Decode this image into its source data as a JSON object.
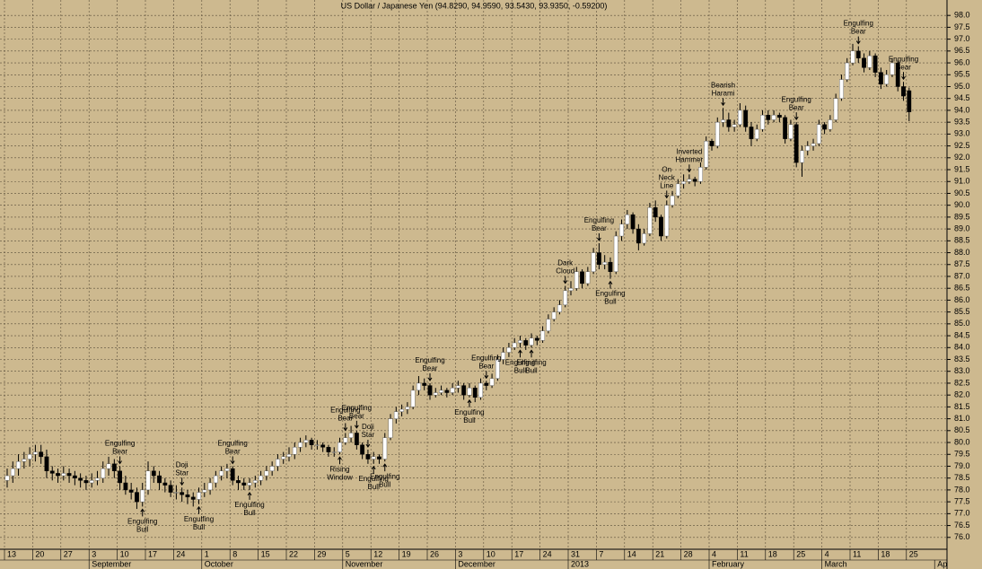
{
  "chart_data": {
    "type": "candlestick",
    "title": "US Dollar / Japanese Yen (94.8290, 94.9590, 93.5430, 93.9350, -0.59200)",
    "ohlc": [
      [
        78.4,
        78.9,
        78.1,
        78.6
      ],
      [
        78.6,
        79.2,
        78.3,
        78.9
      ],
      [
        78.9,
        79.5,
        78.6,
        79.2
      ],
      [
        79.2,
        79.6,
        78.9,
        79.3
      ],
      [
        79.3,
        79.8,
        79.0,
        79.5
      ],
      [
        79.5,
        79.9,
        79.2,
        79.6
      ],
      [
        79.6,
        79.9,
        79.1,
        79.4
      ],
      [
        79.4,
        79.7,
        78.5,
        78.8
      ],
      [
        78.8,
        79.0,
        78.4,
        78.7
      ],
      [
        78.7,
        78.9,
        78.3,
        78.6
      ],
      [
        78.6,
        79.0,
        78.4,
        78.7
      ],
      [
        78.7,
        78.9,
        78.3,
        78.6
      ],
      [
        78.6,
        78.8,
        78.2,
        78.5
      ],
      [
        78.5,
        78.7,
        78.1,
        78.4
      ],
      [
        78.4,
        78.6,
        78.0,
        78.3
      ],
      [
        78.3,
        78.7,
        78.1,
        78.4
      ],
      [
        78.4,
        78.8,
        78.2,
        78.5
      ],
      [
        78.5,
        79.2,
        78.3,
        78.9
      ],
      [
        78.9,
        79.4,
        78.6,
        79.1
      ],
      [
        79.1,
        79.3,
        78.5,
        78.8
      ],
      [
        78.8,
        79.0,
        78.0,
        78.3
      ],
      [
        78.3,
        78.6,
        77.8,
        78.0
      ],
      [
        78.0,
        78.3,
        77.6,
        77.9
      ],
      [
        77.9,
        78.1,
        77.2,
        77.5
      ],
      [
        77.5,
        78.3,
        77.3,
        78.0
      ],
      [
        78.0,
        79.2,
        77.8,
        78.8
      ],
      [
        78.8,
        79.0,
        78.3,
        78.6
      ],
      [
        78.6,
        78.8,
        78.0,
        78.3
      ],
      [
        78.3,
        78.5,
        77.9,
        78.2
      ],
      [
        78.2,
        78.4,
        77.7,
        77.9
      ],
      [
        77.9,
        78.2,
        77.6,
        77.9
      ],
      [
        77.9,
        78.1,
        77.5,
        77.8
      ],
      [
        77.8,
        78.0,
        77.4,
        77.7
      ],
      [
        77.7,
        77.9,
        77.3,
        77.6
      ],
      [
        77.6,
        78.1,
        77.4,
        77.9
      ],
      [
        77.9,
        78.3,
        77.7,
        78.0
      ],
      [
        78.0,
        78.5,
        77.8,
        78.3
      ],
      [
        78.3,
        78.8,
        78.1,
        78.6
      ],
      [
        78.6,
        79.0,
        78.4,
        78.8
      ],
      [
        78.8,
        79.1,
        78.5,
        78.9
      ],
      [
        78.9,
        79.0,
        78.2,
        78.4
      ],
      [
        78.4,
        78.6,
        78.0,
        78.3
      ],
      [
        78.3,
        78.5,
        78.0,
        78.2
      ],
      [
        78.2,
        78.5,
        78.0,
        78.3
      ],
      [
        78.3,
        78.6,
        78.1,
        78.4
      ],
      [
        78.4,
        78.8,
        78.2,
        78.6
      ],
      [
        78.6,
        79.0,
        78.4,
        78.8
      ],
      [
        78.8,
        79.2,
        78.6,
        79.0
      ],
      [
        79.0,
        79.5,
        78.8,
        79.3
      ],
      [
        79.3,
        79.6,
        79.1,
        79.4
      ],
      [
        79.4,
        79.8,
        79.2,
        79.5
      ],
      [
        79.5,
        80.0,
        79.3,
        79.8
      ],
      [
        79.8,
        80.2,
        79.6,
        80.0
      ],
      [
        80.0,
        80.3,
        79.8,
        80.1
      ],
      [
        80.1,
        80.2,
        79.7,
        79.9
      ],
      [
        79.9,
        80.1,
        79.7,
        79.9
      ],
      [
        79.9,
        80.0,
        79.6,
        79.8
      ],
      [
        79.8,
        79.9,
        79.4,
        79.6
      ],
      [
        79.6,
        79.8,
        79.4,
        79.6
      ],
      [
        79.6,
        80.2,
        79.5,
        80.0
      ],
      [
        80.0,
        80.4,
        79.9,
        80.2
      ],
      [
        80.2,
        80.7,
        80.0,
        80.4
      ],
      [
        80.4,
        80.5,
        79.7,
        79.9
      ],
      [
        79.9,
        80.0,
        79.3,
        79.5
      ],
      [
        79.5,
        79.7,
        79.1,
        79.3
      ],
      [
        79.3,
        79.6,
        79.1,
        79.4
      ],
      [
        79.4,
        79.5,
        79.1,
        79.3
      ],
      [
        79.3,
        80.4,
        79.2,
        80.2
      ],
      [
        80.2,
        81.2,
        80.1,
        81.0
      ],
      [
        81.0,
        81.5,
        80.8,
        81.3
      ],
      [
        81.3,
        81.6,
        81.1,
        81.4
      ],
      [
        81.4,
        81.7,
        81.2,
        81.5
      ],
      [
        81.5,
        82.4,
        81.4,
        82.2
      ],
      [
        82.2,
        82.8,
        82.0,
        82.5
      ],
      [
        82.5,
        82.7,
        82.2,
        82.4
      ],
      [
        82.4,
        82.5,
        81.8,
        82.0
      ],
      [
        82.0,
        82.3,
        81.9,
        82.1
      ],
      [
        82.1,
        82.4,
        82.0,
        82.2
      ],
      [
        82.2,
        82.3,
        81.9,
        82.1
      ],
      [
        82.1,
        82.5,
        82.0,
        82.3
      ],
      [
        82.3,
        82.6,
        82.1,
        82.4
      ],
      [
        82.4,
        82.5,
        81.8,
        82.0
      ],
      [
        82.0,
        82.5,
        81.9,
        82.3
      ],
      [
        82.3,
        82.4,
        81.7,
        81.9
      ],
      [
        81.9,
        82.7,
        81.8,
        82.5
      ],
      [
        82.5,
        82.6,
        82.2,
        82.4
      ],
      [
        82.4,
        82.9,
        82.3,
        82.7
      ],
      [
        82.7,
        83.7,
        82.6,
        83.5
      ],
      [
        83.5,
        84.0,
        83.3,
        83.8
      ],
      [
        83.8,
        84.2,
        83.6,
        84.0
      ],
      [
        84.0,
        84.4,
        83.9,
        84.2
      ],
      [
        84.2,
        84.5,
        84.0,
        84.3
      ],
      [
        84.3,
        84.4,
        83.9,
        84.1
      ],
      [
        84.1,
        84.6,
        84.0,
        84.4
      ],
      [
        84.4,
        84.5,
        84.1,
        84.3
      ],
      [
        84.3,
        84.9,
        84.2,
        84.7
      ],
      [
        84.7,
        85.4,
        84.6,
        85.2
      ],
      [
        85.2,
        85.7,
        85.1,
        85.5
      ],
      [
        85.5,
        86.0,
        85.4,
        85.8
      ],
      [
        85.8,
        86.6,
        85.7,
        86.4
      ],
      [
        86.4,
        86.8,
        86.2,
        86.5
      ],
      [
        86.5,
        87.4,
        86.4,
        87.2
      ],
      [
        87.2,
        87.3,
        86.5,
        86.7
      ],
      [
        86.7,
        87.4,
        86.6,
        87.2
      ],
      [
        87.2,
        88.2,
        87.1,
        88.0
      ],
      [
        88.0,
        88.4,
        87.3,
        87.5
      ],
      [
        87.5,
        87.9,
        87.3,
        87.6
      ],
      [
        87.6,
        87.8,
        86.9,
        87.2
      ],
      [
        87.2,
        88.9,
        87.1,
        88.7
      ],
      [
        88.7,
        89.4,
        88.5,
        89.2
      ],
      [
        89.2,
        89.8,
        89.0,
        89.6
      ],
      [
        89.6,
        89.7,
        88.8,
        89.0
      ],
      [
        89.0,
        89.2,
        88.1,
        88.4
      ],
      [
        88.4,
        89.0,
        88.3,
        88.8
      ],
      [
        88.8,
        90.1,
        88.7,
        89.9
      ],
      [
        89.9,
        90.2,
        89.3,
        89.5
      ],
      [
        89.5,
        89.6,
        88.5,
        88.7
      ],
      [
        88.7,
        90.2,
        88.6,
        90.0
      ],
      [
        90.0,
        90.6,
        89.9,
        90.4
      ],
      [
        90.4,
        91.1,
        90.3,
        90.9
      ],
      [
        90.9,
        91.3,
        90.7,
        91.0
      ],
      [
        91.0,
        91.3,
        90.9,
        91.1
      ],
      [
        91.1,
        91.2,
        90.8,
        91.0
      ],
      [
        91.0,
        91.8,
        90.9,
        91.6
      ],
      [
        91.6,
        92.9,
        91.5,
        92.7
      ],
      [
        92.7,
        92.8,
        92.3,
        92.5
      ],
      [
        92.5,
        93.7,
        92.4,
        93.5
      ],
      [
        93.5,
        94.1,
        93.3,
        93.6
      ],
      [
        93.6,
        93.9,
        93.1,
        93.3
      ],
      [
        93.3,
        93.6,
        93.1,
        93.4
      ],
      [
        93.4,
        94.3,
        93.3,
        94.0
      ],
      [
        94.0,
        94.2,
        93.1,
        93.3
      ],
      [
        93.3,
        93.5,
        92.5,
        92.8
      ],
      [
        92.8,
        93.4,
        92.7,
        93.2
      ],
      [
        93.2,
        94.0,
        93.1,
        93.8
      ],
      [
        93.8,
        94.0,
        93.4,
        93.6
      ],
      [
        93.6,
        94.0,
        93.5,
        93.8
      ],
      [
        93.8,
        93.9,
        93.5,
        93.7
      ],
      [
        93.7,
        93.8,
        92.6,
        92.8
      ],
      [
        92.8,
        93.6,
        92.7,
        93.4
      ],
      [
        93.4,
        93.5,
        91.6,
        91.8
      ],
      [
        91.8,
        92.5,
        91.2,
        92.3
      ],
      [
        92.3,
        92.7,
        92.1,
        92.5
      ],
      [
        92.5,
        92.8,
        92.3,
        92.6
      ],
      [
        92.6,
        93.6,
        92.5,
        93.4
      ],
      [
        93.4,
        93.5,
        93.0,
        93.2
      ],
      [
        93.2,
        93.8,
        93.1,
        93.6
      ],
      [
        93.6,
        94.7,
        93.5,
        94.5
      ],
      [
        94.5,
        95.5,
        94.4,
        95.3
      ],
      [
        95.3,
        96.2,
        95.2,
        96.0
      ],
      [
        96.0,
        96.8,
        95.9,
        96.5
      ],
      [
        96.5,
        96.7,
        96.0,
        96.2
      ],
      [
        96.2,
        96.4,
        95.6,
        95.8
      ],
      [
        95.8,
        96.5,
        95.7,
        96.3
      ],
      [
        96.3,
        96.4,
        95.4,
        95.6
      ],
      [
        95.6,
        95.8,
        94.9,
        95.1
      ],
      [
        95.1,
        95.7,
        95.0,
        95.5
      ],
      [
        95.5,
        96.2,
        95.4,
        96.0
      ],
      [
        96.0,
        96.1,
        94.8,
        95.0
      ],
      [
        95.0,
        95.2,
        94.4,
        94.6
      ],
      [
        94.829,
        94.959,
        93.543,
        93.935
      ]
    ],
    "up_color": "#ffffff",
    "down_color": "#000000",
    "ylim": [
      75.5,
      98.65
    ],
    "yticks": [
      {
        "value": 76,
        "label": "76.0"
      },
      {
        "value": 76.5,
        "label": "76.5"
      },
      {
        "value": 77,
        "label": "77.0"
      },
      {
        "value": 77.5,
        "label": "77.5"
      },
      {
        "value": 78,
        "label": "78.0"
      },
      {
        "value": 78.5,
        "label": "78.5"
      },
      {
        "value": 79,
        "label": "79.0"
      },
      {
        "value": 79.5,
        "label": "79.5"
      },
      {
        "value": 80,
        "label": "80.0"
      },
      {
        "value": 80.5,
        "label": "80.5"
      },
      {
        "value": 81,
        "label": "81.0"
      },
      {
        "value": 81.5,
        "label": "81.5"
      },
      {
        "value": 82,
        "label": "82.0"
      },
      {
        "value": 82.5,
        "label": "82.5"
      },
      {
        "value": 83,
        "label": "83.0"
      },
      {
        "value": 83.5,
        "label": "83.5"
      },
      {
        "value": 84,
        "label": "84.0"
      },
      {
        "value": 84.5,
        "label": "84.5"
      },
      {
        "value": 85,
        "label": "85.0"
      },
      {
        "value": 85.5,
        "label": "85.5"
      },
      {
        "value": 86,
        "label": "86.0"
      },
      {
        "value": 86.5,
        "label": "86.5"
      },
      {
        "value": 87,
        "label": "87.0"
      },
      {
        "value": 87.5,
        "label": "87.5"
      },
      {
        "value": 88,
        "label": "88.0"
      },
      {
        "value": 88.5,
        "label": "88.5"
      },
      {
        "value": 89,
        "label": "89.0"
      },
      {
        "value": 89.5,
        "label": "89.5"
      },
      {
        "value": 90,
        "label": "90.0"
      },
      {
        "value": 90.5,
        "label": "90.5"
      },
      {
        "value": 91,
        "label": "91.0"
      },
      {
        "value": 91.5,
        "label": "91.5"
      },
      {
        "value": 92,
        "label": "92.0"
      },
      {
        "value": 92.5,
        "label": "92.5"
      },
      {
        "value": 93,
        "label": "93.0"
      },
      {
        "value": 93.5,
        "label": "93.5"
      },
      {
        "value": 94,
        "label": "94.0"
      },
      {
        "value": 94.5,
        "label": "94.5"
      },
      {
        "value": 95,
        "label": "95.0"
      },
      {
        "value": 95.5,
        "label": "95.5"
      },
      {
        "value": 96,
        "label": "96.0"
      },
      {
        "value": 96.5,
        "label": "96.5"
      },
      {
        "value": 97,
        "label": "97.0"
      },
      {
        "value": 97.5,
        "label": "97.5"
      },
      {
        "value": 98,
        "label": "98.0"
      }
    ],
    "grid": true,
    "week_labels": [
      "13",
      "20",
      "27",
      "3",
      "10",
      "17",
      "24",
      "1",
      "8",
      "15",
      "22",
      "29",
      "5",
      "12",
      "19",
      "26",
      "3",
      "10",
      "17",
      "24",
      "31",
      "7",
      "14",
      "21",
      "28",
      "4",
      "11",
      "18",
      "25",
      "4",
      "11",
      "18",
      "25"
    ],
    "month_labels": [
      "September",
      "October",
      "November",
      "December",
      "2013",
      "February",
      "March",
      "Ap"
    ],
    "annotations": [
      [
        "Engulfing",
        "Bear"
      ],
      [
        "Engulfing",
        "Bull"
      ],
      [
        "Doji",
        "Star"
      ],
      [
        "Engulfing",
        "Bull"
      ],
      [
        "Engulfing",
        "Bear"
      ],
      [
        "Engulfing",
        "Bull"
      ],
      [
        "Engulfing",
        "Bear"
      ],
      [
        "Rising",
        "Window"
      ],
      [
        "Engulfing",
        "Bear"
      ],
      [
        "Doji",
        "Star"
      ],
      [
        "Engulfing",
        "Bull"
      ],
      [
        "Engulfing",
        "Bull"
      ],
      [
        "Engulfing",
        "Bear"
      ],
      [
        "Engulfing",
        "Bull"
      ],
      [
        "Engulfing",
        "Bear"
      ],
      [
        "Engulfing",
        "Bull"
      ],
      [
        "Engulfing",
        "Bull"
      ],
      [
        "Dark",
        "Cloud"
      ],
      [
        "Engulfing",
        "Bear"
      ],
      [
        "Engulfing",
        "Bull"
      ],
      [
        "On",
        "Neck",
        "Line"
      ],
      [
        "Inverted",
        "Hammer"
      ],
      [
        "Bearish",
        "Harami"
      ],
      [
        "Engulfing",
        "Bear"
      ],
      [
        "Engulfing",
        "Bear"
      ],
      [
        "Engulfing",
        "Bear"
      ]
    ]
  }
}
